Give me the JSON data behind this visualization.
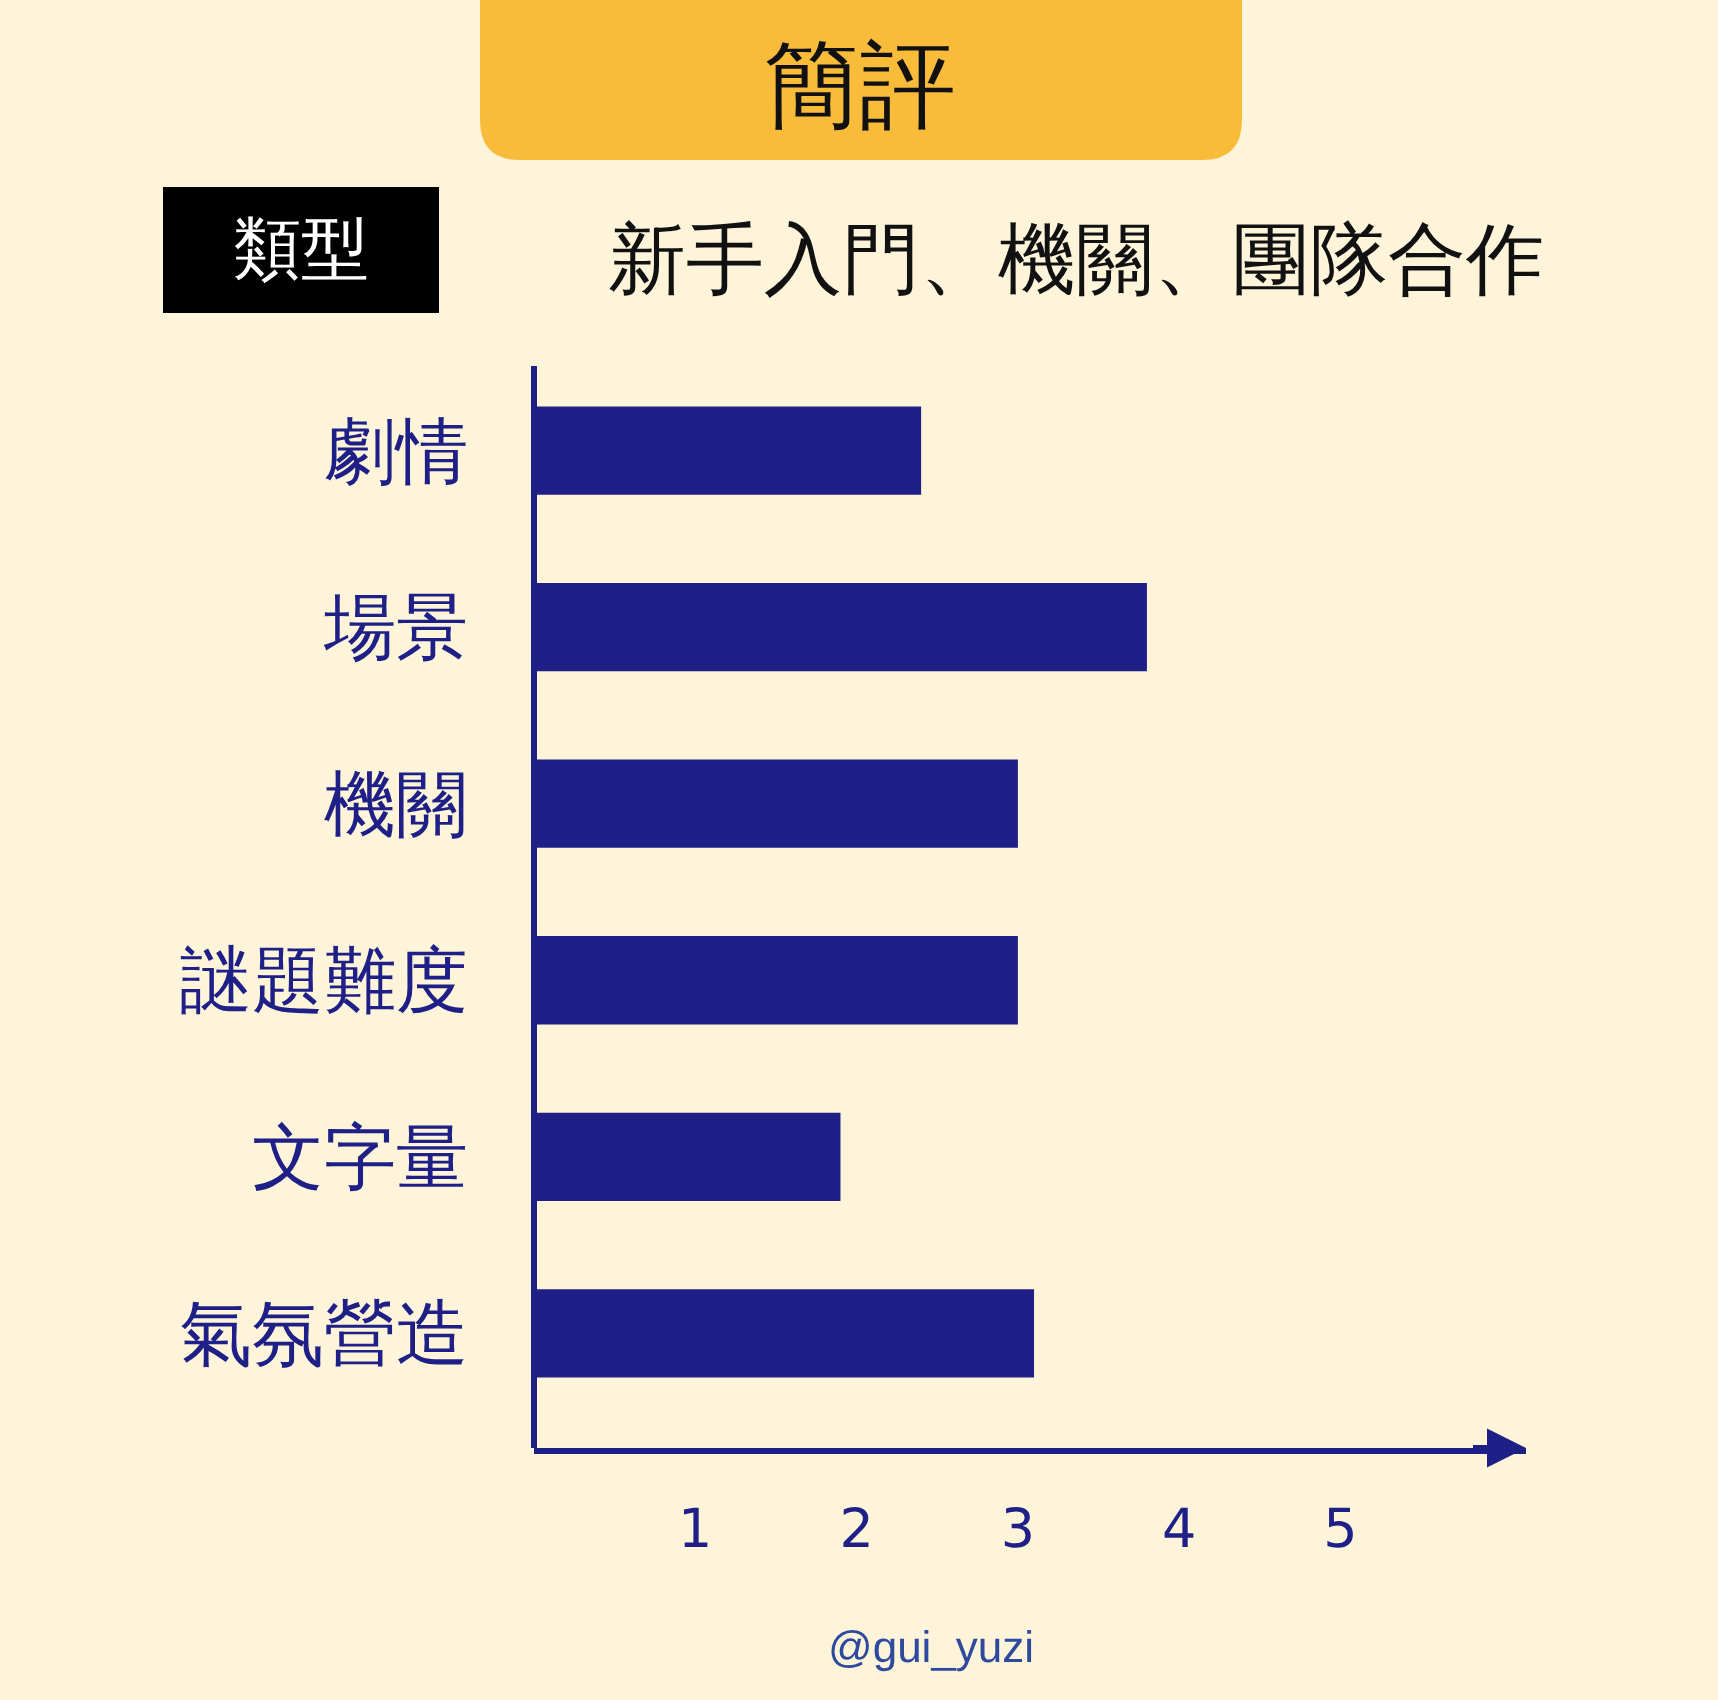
{
  "chart_data": {
    "type": "bar",
    "orientation": "horizontal",
    "title": "簡評",
    "categories": [
      "劇情",
      "場景",
      "機關",
      "謎題難度",
      "文字量",
      "氣氛營造"
    ],
    "values": [
      2.4,
      3.8,
      3.0,
      3.0,
      1.9,
      3.1
    ],
    "color": "#1f2087",
    "xlim": [
      0,
      6.15
    ],
    "xticks": [
      1,
      2,
      3,
      4,
      5
    ],
    "annotations": [
      "類型",
      "新手入門、機關、團隊合作",
      "@gui_yuzi"
    ]
  }
}
